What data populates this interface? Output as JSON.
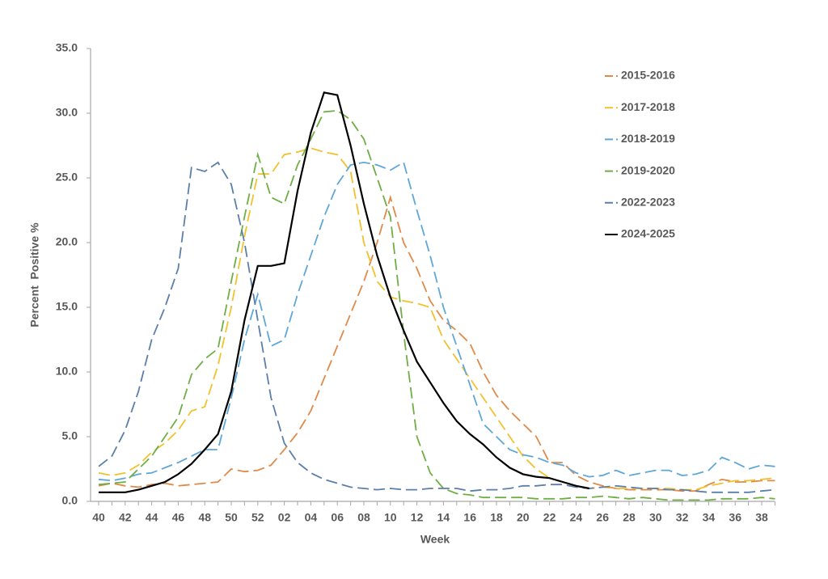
{
  "chart_data": {
    "type": "line",
    "x_label": "Week",
    "y_label": "Percent  Positive %",
    "categories": [
      "40",
      null,
      "42",
      null,
      "44",
      null,
      "46",
      null,
      "48",
      null,
      "50",
      null,
      "52",
      null,
      "02",
      null,
      "04",
      null,
      "06",
      null,
      "08",
      null,
      "10",
      null,
      "12",
      null,
      "14",
      null,
      "16",
      null,
      "18",
      null,
      "20",
      null,
      "22",
      null,
      "24",
      null,
      "26",
      null,
      "28",
      null,
      "30",
      null,
      "32",
      null,
      "34",
      null,
      "36",
      null,
      "38",
      null
    ],
    "ylim": [
      0,
      35
    ],
    "yticks": [
      {
        "value": 0,
        "label": "0.0"
      },
      {
        "value": 5,
        "label": "5.0"
      },
      {
        "value": 10,
        "label": "10.0"
      },
      {
        "value": 15,
        "label": "15.0"
      },
      {
        "value": 20,
        "label": "20.0"
      },
      {
        "value": 25,
        "label": "25.0"
      },
      {
        "value": 30,
        "label": "30.0"
      },
      {
        "value": 35,
        "label": "35.0"
      }
    ],
    "legend": "right",
    "series": [
      {
        "name": "2015-2016",
        "color": "#e08a4a",
        "line_style": "dashed",
        "values": [
          1.2,
          1.4,
          1.2,
          1.1,
          1.3,
          1.4,
          1.2,
          1.3,
          1.4,
          1.5,
          2.5,
          2.3,
          2.4,
          2.8,
          4.0,
          5.3,
          7.0,
          9.5,
          12,
          14.5,
          17,
          20,
          23.5,
          20,
          18,
          15.5,
          14,
          13.2,
          12.2,
          10,
          8.2,
          7,
          6,
          5,
          3,
          3,
          2,
          1.5,
          1.2,
          1,
          0.9,
          0.9,
          0.9,
          0.9,
          0.8,
          0.8,
          1.3,
          1.7,
          1.5,
          1.5,
          1.6,
          1.6
        ]
      },
      {
        "name": "2017-2018",
        "color": "#f2c12e",
        "line_style": "dashed",
        "values": [
          2.2,
          2.0,
          2.2,
          2.8,
          3.8,
          4.5,
          5.5,
          7,
          7.3,
          10.5,
          15,
          20.5,
          25.3,
          25.3,
          26.8,
          27,
          27.3,
          27,
          26.8,
          25.5,
          20,
          17,
          15.8,
          15.5,
          15.3,
          15,
          12.5,
          11,
          9.5,
          8,
          6.5,
          5,
          3.5,
          2.5,
          1.8,
          1.5,
          1.2,
          1.0,
          1.1,
          1,
          1,
          1,
          1,
          1,
          0.9,
          0.9,
          1.2,
          1.4,
          1.6,
          1.6,
          1.7,
          1.8
        ]
      },
      {
        "name": "2018-2019",
        "color": "#5ea7d8",
        "line_style": "dashed",
        "values": [
          1.7,
          1.6,
          1.8,
          2.1,
          2.2,
          2.6,
          3,
          3.5,
          4,
          4,
          8,
          12.5,
          16,
          12,
          12.5,
          16,
          19,
          22,
          24.5,
          26,
          26.2,
          26,
          25.6,
          26.2,
          22.5,
          19,
          15,
          12,
          9,
          6,
          5,
          4,
          3.6,
          3.4,
          3,
          2.8,
          2.2,
          1.9,
          2.0,
          2.4,
          2.0,
          2.2,
          2.4,
          2.4,
          2.0,
          2.1,
          2.4,
          3.4,
          3.0,
          2.5,
          2.8,
          2.7
        ]
      },
      {
        "name": "2019-2020",
        "color": "#6fae45",
        "line_style": "dashed",
        "values": [
          1.3,
          1.4,
          1.5,
          2.5,
          3.5,
          5,
          6.5,
          9.8,
          11,
          11.8,
          17,
          22,
          26.8,
          23.5,
          23,
          26,
          28,
          30.1,
          30.2,
          29.5,
          28,
          25,
          22,
          13,
          5,
          2.2,
          1,
          0.6,
          0.5,
          0.3,
          0.3,
          0.3,
          0.3,
          0.2,
          0.2,
          0.2,
          0.3,
          0.3,
          0.4,
          0.3,
          0.2,
          0.3,
          0.2,
          0.1,
          0.1,
          0.1,
          0.1,
          0.2,
          0.2,
          0.2,
          0.3,
          0.2
        ]
      },
      {
        "name": "2022-2023",
        "color": "#5b7fa8",
        "line_style": "dashed",
        "values": [
          2.7,
          3.5,
          5.5,
          8.5,
          12.5,
          15,
          18,
          25.8,
          25.5,
          26.2,
          24.5,
          20,
          14,
          8,
          4.5,
          3,
          2.2,
          1.7,
          1.4,
          1.1,
          1,
          0.9,
          1,
          0.9,
          0.9,
          1,
          1,
          1,
          0.8,
          0.9,
          0.9,
          1,
          1.2,
          1.2,
          1.3,
          1.3,
          1.1,
          1.0,
          1.1,
          1.2,
          1.1,
          1.0,
          1.0,
          0.9,
          0.9,
          0.8,
          0.7,
          0.7,
          0.7,
          0.7,
          0.8,
          0.9
        ]
      },
      {
        "name": "2024-2025",
        "color": "#000000",
        "line_style": "solid",
        "values": [
          0.7,
          0.7,
          0.7,
          0.9,
          1.2,
          1.5,
          2.1,
          2.9,
          4.0,
          5.2,
          8.5,
          14,
          18.2,
          18.2,
          18.4,
          24,
          28.5,
          31.6,
          31.4,
          27.5,
          23,
          19,
          15.8,
          13.2,
          10.8,
          9.2,
          7.6,
          6.2,
          5.2,
          4.4,
          3.4,
          2.6,
          2.1,
          1.9,
          1.8,
          1.5,
          1.2,
          1.0,
          null,
          null,
          null,
          null,
          null,
          null,
          null,
          null,
          null,
          null,
          null,
          null,
          null,
          null
        ]
      }
    ]
  }
}
